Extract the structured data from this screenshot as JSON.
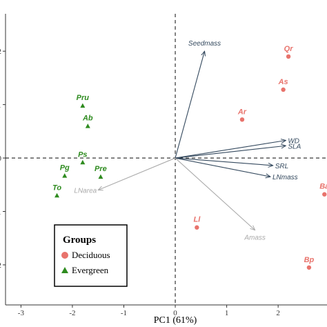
{
  "chart_data": {
    "type": "scatter",
    "subtype": "pca-biplot",
    "xlabel": "PC1 (61%)",
    "ylabel": "",
    "xlim": [
      -3.3,
      2.95
    ],
    "ylim": [
      -2.75,
      2.7
    ],
    "x_ticks": [
      -3,
      -2,
      -1,
      0,
      1,
      2
    ],
    "y_ticks": [
      2,
      1,
      0,
      -1,
      -2
    ],
    "y_tick_labels": [
      "2",
      "1",
      "0",
      "1",
      "2"
    ],
    "colors": {
      "Deciduous": "#e8736c",
      "Evergreen": "#2e8b1f",
      "active_vector": "#34495e",
      "supplementary_vector": "#aaaaaa"
    },
    "groups": [
      {
        "name": "Deciduous",
        "marker": "circle",
        "points": [
          {
            "label": "Qr",
            "x": 2.2,
            "y": 1.9
          },
          {
            "label": "As",
            "x": 2.1,
            "y": 1.28
          },
          {
            "label": "Ar",
            "x": 1.3,
            "y": 0.72
          },
          {
            "label": "Ba",
            "x": 2.9,
            "y": -0.68
          },
          {
            "label": "Ll",
            "x": 0.42,
            "y": -1.3
          },
          {
            "label": "Bp",
            "x": 2.6,
            "y": -2.05
          }
        ]
      },
      {
        "name": "Evergreen",
        "marker": "triangle",
        "points": [
          {
            "label": "Pru",
            "x": -1.8,
            "y": 0.98
          },
          {
            "label": "Ab",
            "x": -1.7,
            "y": 0.6
          },
          {
            "label": "Ps",
            "x": -1.8,
            "y": -0.08
          },
          {
            "label": "Pg",
            "x": -2.15,
            "y": -0.33
          },
          {
            "label": "Pre",
            "x": -1.45,
            "y": -0.35
          },
          {
            "label": "To",
            "x": -2.3,
            "y": -0.7
          }
        ]
      }
    ],
    "vectors": [
      {
        "label": "Seedmass",
        "x": 0.57,
        "y": 2.0,
        "type": "active"
      },
      {
        "label": "WD",
        "x": 2.15,
        "y": 0.33,
        "type": "active"
      },
      {
        "label": "SLA",
        "x": 2.15,
        "y": 0.23,
        "type": "active"
      },
      {
        "label": "SRL",
        "x": 1.9,
        "y": -0.14,
        "type": "active"
      },
      {
        "label": "LNmass",
        "x": 1.85,
        "y": -0.35,
        "type": "active"
      },
      {
        "label": "LNarea",
        "x": -1.5,
        "y": -0.6,
        "type": "supplementary"
      },
      {
        "label": "Amass",
        "x": 1.55,
        "y": -1.35,
        "type": "supplementary"
      }
    ],
    "legend": {
      "title": "Groups",
      "entries": [
        "Deciduous",
        "Evergreen"
      ],
      "placement": "bottom-left"
    },
    "grid": false,
    "reference_lines": {
      "x": 0,
      "y": 0,
      "style": "dashed"
    }
  }
}
